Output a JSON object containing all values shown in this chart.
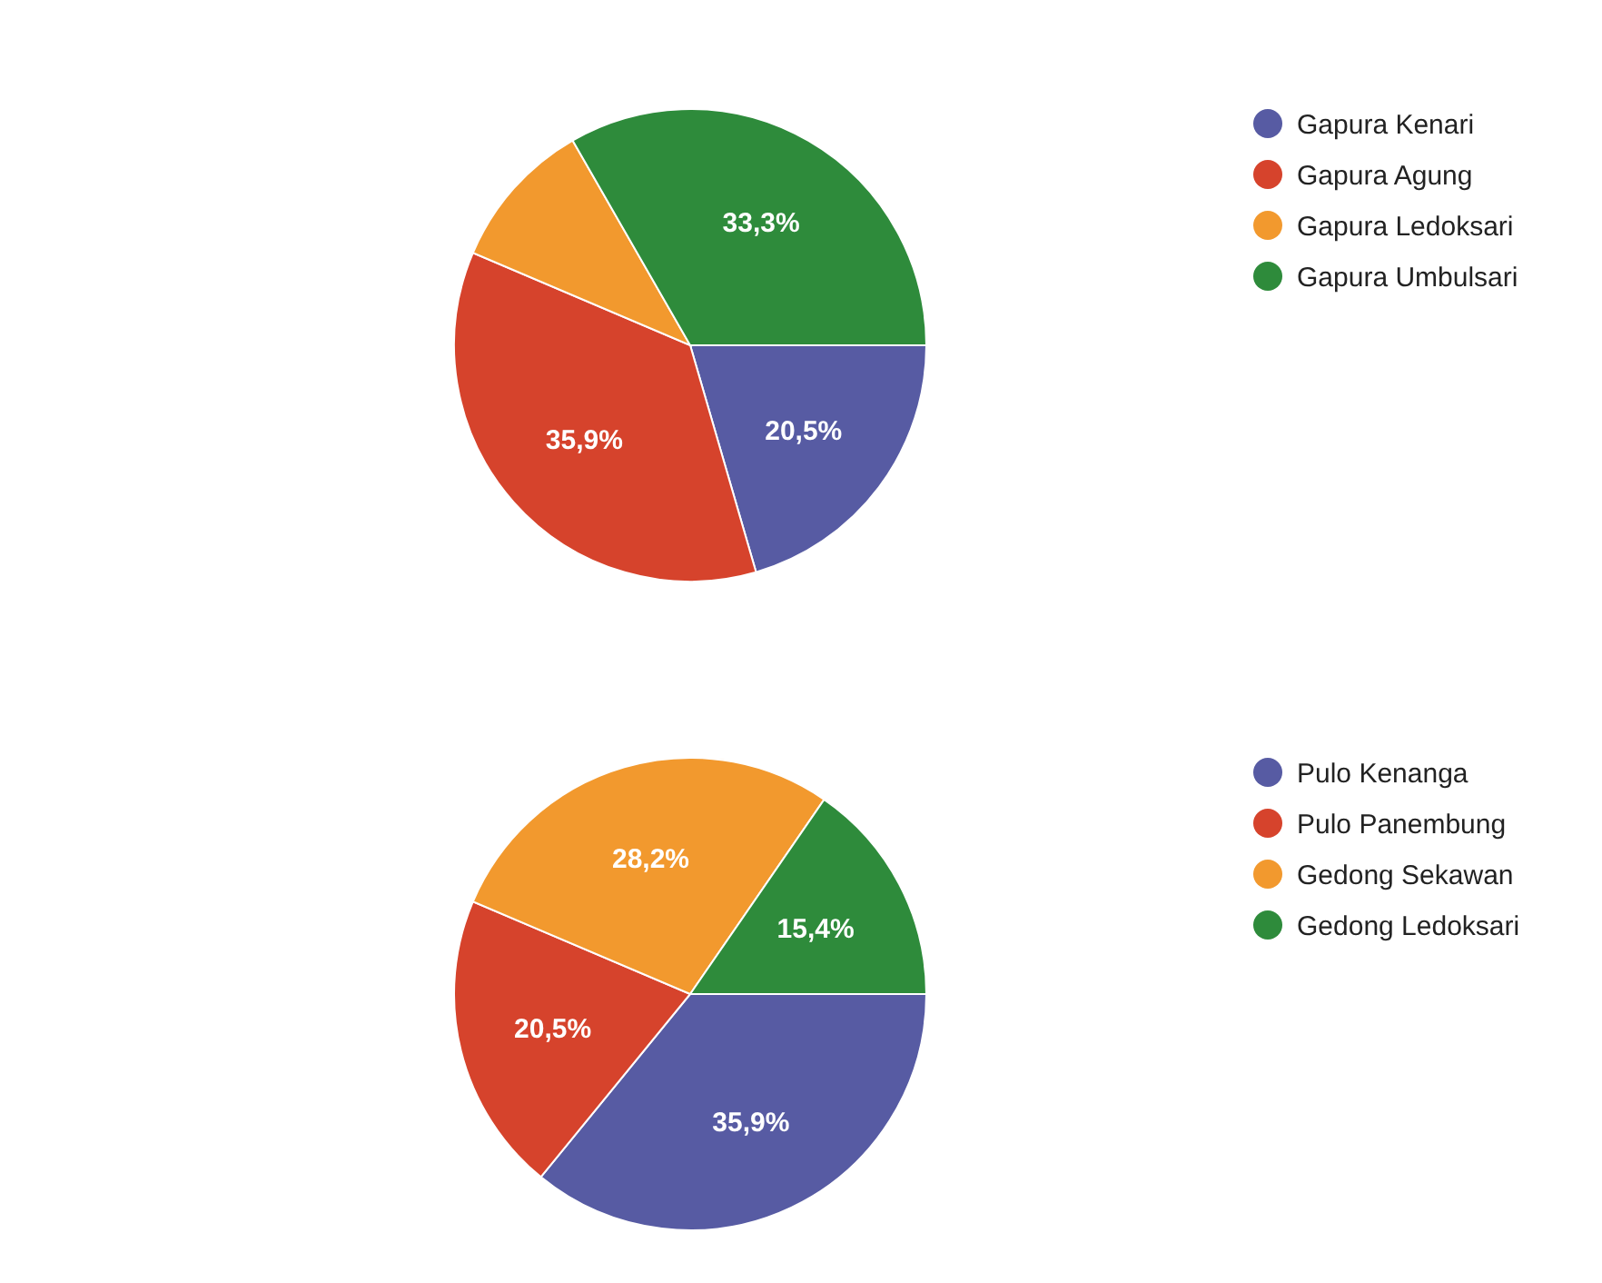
{
  "chart_data": [
    {
      "type": "pie",
      "categories": [
        "Gapura Kenari",
        "Gapura Agung",
        "Gapura Ledoksari",
        "Gapura Umbulsari"
      ],
      "values": [
        20.5,
        35.9,
        10.3,
        33.3
      ],
      "colors": [
        "#575ba3",
        "#d6432c",
        "#f2992e",
        "#2e8b3b"
      ],
      "value_labels": [
        "20,5%",
        "35,9%",
        null,
        "33,3%"
      ],
      "legend": "right"
    },
    {
      "type": "pie",
      "categories": [
        "Pulo Kenanga",
        "Pulo Panembung",
        "Gedong Sekawan",
        "Gedong Ledoksari"
      ],
      "values": [
        35.9,
        20.5,
        28.2,
        15.4
      ],
      "colors": [
        "#575ba3",
        "#d6432c",
        "#f2992e",
        "#2e8b3b"
      ],
      "value_labels": [
        "35,9%",
        "20,5%",
        "28,2%",
        "15,4%"
      ],
      "legend": "right"
    }
  ]
}
